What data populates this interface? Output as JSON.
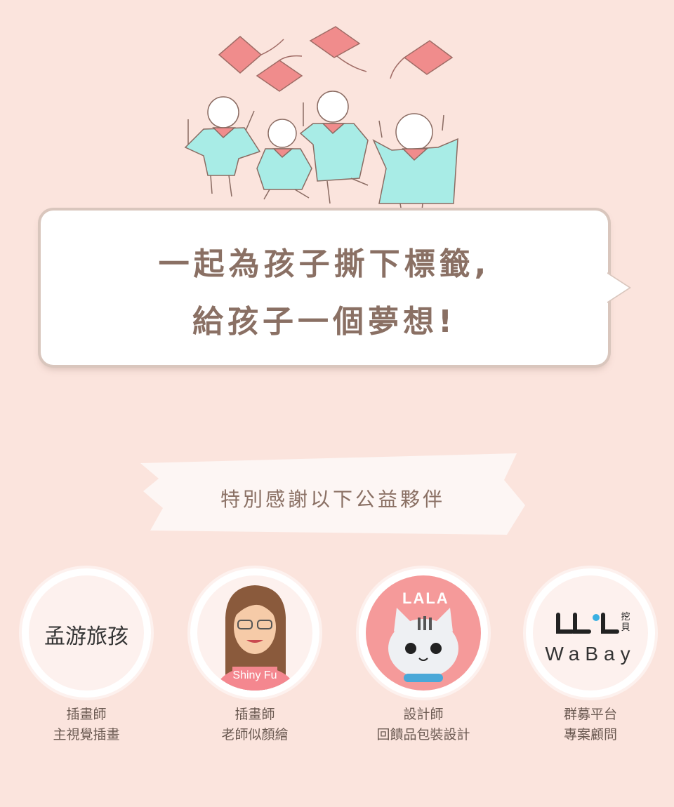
{
  "slogan": {
    "line1": "一起為孩子撕下標籤,",
    "line2": "給孩子一個夢想!"
  },
  "thanks_banner": "特別感謝以下公益夥伴",
  "partners": [
    {
      "logo_text": "孟游旅孩",
      "role": "插畫師",
      "desc": "主視覺插畫"
    },
    {
      "logo_text": "Shiny Fu",
      "role": "插畫師",
      "desc": "老師似顏繪"
    },
    {
      "logo_text": "LALA",
      "role": "設計師",
      "desc": "回饋品包裝設計"
    },
    {
      "logo_text": "WaBay",
      "logo_text_cn": "挖貝",
      "role": "群募平台",
      "desc": "專案顧問"
    }
  ],
  "colors": {
    "background": "#fbe4dd",
    "text_brown": "#8a7064",
    "gown": "#a8ece6",
    "cap": "#f08c8c",
    "lala_bg": "#f59a9a"
  }
}
